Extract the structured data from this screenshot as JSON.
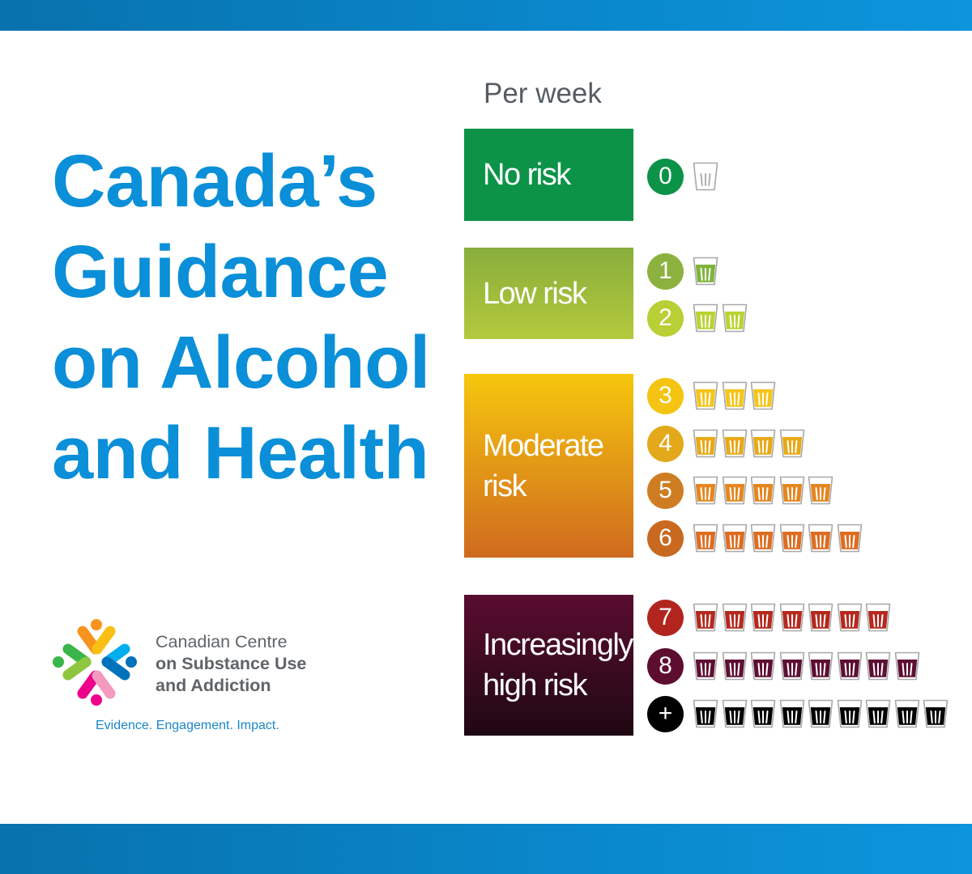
{
  "title": {
    "line1": "Canada’s",
    "line2": "Guidance",
    "line3": "on Alcohol",
    "line4": "and Health"
  },
  "per_week_label": "Per week",
  "risk_categories": [
    {
      "line1": "No risk",
      "line2": "",
      "colors": [
        "#0c9348",
        "#0c9348"
      ]
    },
    {
      "line1": "Low risk",
      "line2": "",
      "colors": [
        "#88ae3c",
        "#b4c93d"
      ]
    },
    {
      "line1": "Moderate",
      "line2": "risk",
      "colors": [
        "#f6c70d",
        "#cf6a1f"
      ]
    },
    {
      "line1": "Increasingly",
      "line2": "high risk",
      "colors": [
        "#5a0d30",
        "#1f0812"
      ]
    }
  ],
  "drink_rows": [
    {
      "label": "0",
      "drinks": 0,
      "circle_color": "#0c9348",
      "fill_color": ""
    },
    {
      "label": "1",
      "drinks": 1,
      "circle_color": "#8db13f",
      "fill_color": "#7fb33a"
    },
    {
      "label": "2",
      "drinks": 2,
      "circle_color": "#b8cf35",
      "fill_color": "#b8d430"
    },
    {
      "label": "3",
      "drinks": 3,
      "circle_color": "#f5c412",
      "fill_color": "#f5c51b"
    },
    {
      "label": "4",
      "drinks": 4,
      "circle_color": "#e3a91b",
      "fill_color": "#e8a917"
    },
    {
      "label": "5",
      "drinks": 5,
      "circle_color": "#cf7d22",
      "fill_color": "#e5861f"
    },
    {
      "label": "6",
      "drinks": 6,
      "circle_color": "#c9691f",
      "fill_color": "#de6d21"
    },
    {
      "label": "7",
      "drinks": 7,
      "circle_color": "#b2251f",
      "fill_color": "#b5291f"
    },
    {
      "label": "8",
      "drinks": 8,
      "circle_color": "#5d0d30",
      "fill_color": "#5e0f33"
    },
    {
      "label": "+",
      "drinks": 9,
      "circle_color": "#000000",
      "fill_color": "#000000"
    }
  ],
  "organization": {
    "line1": "Canadian Centre",
    "line2": "on Substance Use",
    "line3": "and Addiction",
    "tagline": "Evidence. Engagement. Impact."
  },
  "colors": {
    "title_blue": "#0a8fd8",
    "band_blue": "#0a86c9",
    "logo": [
      "#f7941d",
      "#f9c013",
      "#00aeef",
      "#0072bc",
      "#ec008c",
      "#f49ac1",
      "#8dc63f",
      "#39b54a"
    ]
  }
}
